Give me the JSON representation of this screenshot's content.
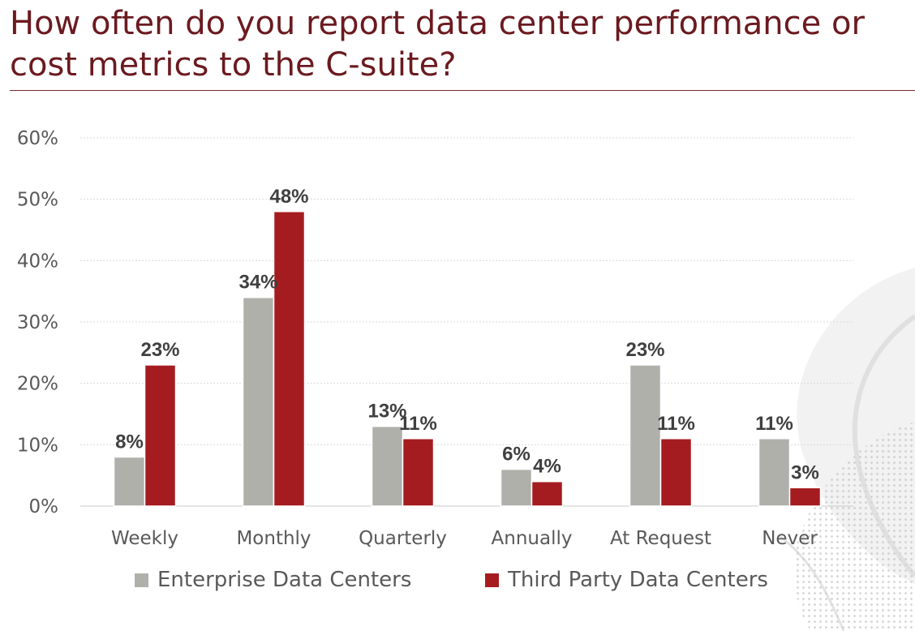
{
  "title": "How often do you report data center performance or cost metrics to the C-suite?",
  "chart_data": {
    "type": "bar",
    "title": "How often do you report data center performance or cost metrics to the C-suite?",
    "xlabel": "",
    "ylabel": "",
    "categories": [
      "Weekly",
      "Monthly",
      "Quarterly",
      "Annually",
      "At Request",
      "Never"
    ],
    "series": [
      {
        "name": "Enterprise Data Centers",
        "color": "#b0b0ab",
        "values": [
          8,
          34,
          13,
          6,
          23,
          11
        ],
        "labels": [
          "8%",
          "34%",
          "13%",
          "6%",
          "23%",
          "11%"
        ]
      },
      {
        "name": "Third Party Data Centers",
        "color": "#a51c20",
        "values": [
          23,
          48,
          11,
          4,
          11,
          3
        ],
        "labels": [
          "23%",
          "48%",
          "11%",
          "4%",
          "11%",
          "3%"
        ]
      }
    ],
    "ylim": [
      0,
      60
    ],
    "yticks": [
      0,
      10,
      20,
      30,
      40,
      50,
      60
    ],
    "ytick_labels": [
      "0%",
      "10%",
      "20%",
      "30%",
      "40%",
      "50%",
      "60%"
    ],
    "grid": true,
    "legend_position": "bottom",
    "data_labels": true
  }
}
